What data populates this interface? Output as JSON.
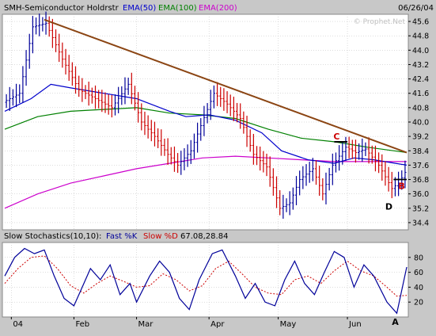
{
  "header": {
    "title": "SMH-Semiconductor Holdrstr",
    "date": "06/26/04",
    "legend": [
      {
        "label": "EMA(50)",
        "color": "#0000cc"
      },
      {
        "label": "EMA(100)",
        "color": "#008000"
      },
      {
        "label": "EMA(200)",
        "color": "#cc00cc"
      }
    ],
    "watermark": "© Prophet.Net"
  },
  "stoch_header": {
    "title": "Slow Stochastics(10,10):",
    "k_label": "Fast %K",
    "d_label": "Slow %D",
    "values": "67.08,28.84",
    "k_color": "#000099",
    "d_color": "#cc0000"
  },
  "annotations": {
    "C": "C",
    "B": "B",
    "D": "D",
    "A": "A"
  },
  "colors": {
    "up_bar": "#000099",
    "down_bar": "#cc0000",
    "trendline": "#8b4513",
    "panel_bg": "#ffffff",
    "grid": "#bbbbbb"
  },
  "chart_data": [
    {
      "type": "line",
      "name": "price",
      "xlabel": "",
      "ylabel": "",
      "ylim": [
        34.0,
        46.0
      ],
      "yticks": [
        45.6,
        44.8,
        44.0,
        43.2,
        42.4,
        41.6,
        40.8,
        40.0,
        39.2,
        38.4,
        37.6,
        36.8,
        36.0,
        35.2,
        34.4
      ],
      "x_ticks": [
        "04",
        "Feb",
        "Mar",
        "Apr",
        "May",
        "Jun"
      ],
      "x_tick_index": [
        2,
        21,
        40,
        62,
        83,
        104
      ],
      "n_bars": 122,
      "price_path": [
        [
          0,
          41.1
        ],
        [
          5,
          41.6
        ],
        [
          9,
          45.3
        ],
        [
          13,
          45.5
        ],
        [
          18,
          43.5
        ],
        [
          23,
          41.8
        ],
        [
          28,
          41.3
        ],
        [
          33,
          40.8
        ],
        [
          38,
          42.1
        ],
        [
          42,
          40.0
        ],
        [
          46,
          39.2
        ],
        [
          50,
          38.2
        ],
        [
          53,
          37.6
        ],
        [
          57,
          38.4
        ],
        [
          60,
          39.8
        ],
        [
          64,
          41.6
        ],
        [
          68,
          41.0
        ],
        [
          72,
          40.2
        ],
        [
          76,
          38.2
        ],
        [
          80,
          37.5
        ],
        [
          84,
          35.2
        ],
        [
          87,
          35.5
        ],
        [
          90,
          36.8
        ],
        [
          94,
          37.4
        ],
        [
          97,
          36.0
        ],
        [
          100,
          37.6
        ],
        [
          104,
          38.6
        ],
        [
          107,
          38.3
        ],
        [
          110,
          38.5
        ],
        [
          114,
          37.6
        ],
        [
          118,
          36.3
        ],
        [
          120,
          36.6
        ],
        [
          122,
          37.2
        ]
      ],
      "ema_50": [
        [
          0,
          40.6
        ],
        [
          8,
          41.3
        ],
        [
          14,
          42.1
        ],
        [
          20,
          41.9
        ],
        [
          30,
          41.6
        ],
        [
          40,
          41.3
        ],
        [
          50,
          40.6
        ],
        [
          55,
          40.3
        ],
        [
          62,
          40.4
        ],
        [
          70,
          40.1
        ],
        [
          78,
          39.4
        ],
        [
          84,
          38.4
        ],
        [
          92,
          37.9
        ],
        [
          100,
          37.7
        ],
        [
          106,
          38.0
        ],
        [
          112,
          37.9
        ],
        [
          122,
          37.6
        ]
      ],
      "ema_100": [
        [
          0,
          39.6
        ],
        [
          10,
          40.3
        ],
        [
          20,
          40.6
        ],
        [
          30,
          40.7
        ],
        [
          40,
          40.8
        ],
        [
          50,
          40.5
        ],
        [
          60,
          40.4
        ],
        [
          70,
          40.2
        ],
        [
          80,
          39.6
        ],
        [
          90,
          39.1
        ],
        [
          100,
          38.9
        ],
        [
          110,
          38.6
        ],
        [
          122,
          38.3
        ]
      ],
      "ema_200": [
        [
          0,
          35.2
        ],
        [
          10,
          36.0
        ],
        [
          20,
          36.6
        ],
        [
          30,
          37.0
        ],
        [
          40,
          37.4
        ],
        [
          50,
          37.7
        ],
        [
          60,
          38.0
        ],
        [
          70,
          38.1
        ],
        [
          80,
          38.0
        ],
        [
          90,
          37.9
        ],
        [
          100,
          37.8
        ],
        [
          110,
          37.8
        ],
        [
          122,
          37.8
        ]
      ],
      "trendline": [
        [
          12,
          45.7
        ],
        [
          122,
          38.3
        ]
      ],
      "c_line": [
        [
          100,
          38.9
        ],
        [
          104,
          38.9
        ]
      ],
      "b_line": [
        [
          118,
          36.8
        ],
        [
          122,
          36.8
        ]
      ]
    },
    {
      "type": "line",
      "name": "slow-stochastics",
      "ylim": [
        0,
        100
      ],
      "yticks": [
        20,
        40,
        60,
        80
      ],
      "fast_k": [
        [
          0,
          55
        ],
        [
          3,
          80
        ],
        [
          6,
          92
        ],
        [
          9,
          85
        ],
        [
          12,
          90
        ],
        [
          15,
          55
        ],
        [
          18,
          25
        ],
        [
          21,
          15
        ],
        [
          23,
          35
        ],
        [
          26,
          65
        ],
        [
          29,
          50
        ],
        [
          32,
          70
        ],
        [
          35,
          30
        ],
        [
          38,
          45
        ],
        [
          40,
          20
        ],
        [
          44,
          55
        ],
        [
          47,
          75
        ],
        [
          50,
          60
        ],
        [
          53,
          25
        ],
        [
          56,
          10
        ],
        [
          59,
          50
        ],
        [
          63,
          85
        ],
        [
          66,
          90
        ],
        [
          70,
          55
        ],
        [
          73,
          25
        ],
        [
          76,
          45
        ],
        [
          79,
          20
        ],
        [
          82,
          15
        ],
        [
          85,
          50
        ],
        [
          88,
          75
        ],
        [
          91,
          45
        ],
        [
          94,
          30
        ],
        [
          97,
          60
        ],
        [
          100,
          88
        ],
        [
          103,
          80
        ],
        [
          106,
          40
        ],
        [
          109,
          70
        ],
        [
          112,
          55
        ],
        [
          116,
          20
        ],
        [
          119,
          5
        ],
        [
          122,
          67
        ]
      ],
      "slow_d": [
        [
          0,
          45
        ],
        [
          4,
          65
        ],
        [
          8,
          80
        ],
        [
          12,
          82
        ],
        [
          16,
          65
        ],
        [
          20,
          42
        ],
        [
          24,
          32
        ],
        [
          28,
          45
        ],
        [
          32,
          55
        ],
        [
          36,
          48
        ],
        [
          40,
          40
        ],
        [
          44,
          42
        ],
        [
          48,
          58
        ],
        [
          52,
          50
        ],
        [
          56,
          35
        ],
        [
          60,
          42
        ],
        [
          64,
          65
        ],
        [
          68,
          75
        ],
        [
          72,
          58
        ],
        [
          76,
          40
        ],
        [
          80,
          32
        ],
        [
          84,
          30
        ],
        [
          88,
          50
        ],
        [
          92,
          55
        ],
        [
          96,
          45
        ],
        [
          100,
          62
        ],
        [
          104,
          75
        ],
        [
          108,
          62
        ],
        [
          112,
          55
        ],
        [
          116,
          40
        ],
        [
          119,
          28
        ],
        [
          122,
          29
        ]
      ]
    }
  ]
}
